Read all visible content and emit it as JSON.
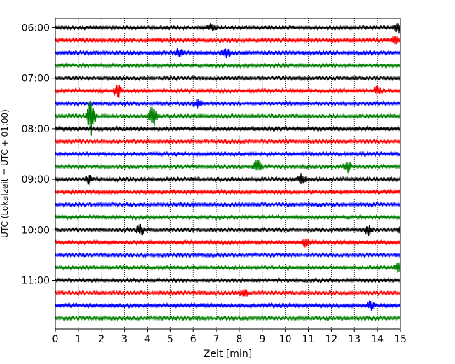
{
  "chart_data": {
    "type": "line",
    "title": "",
    "xlabel": "Zeit  [min]",
    "ylabel": "UTC (Lokalzeit = UTC + 01:00)",
    "xlim": [
      0,
      15
    ],
    "x_ticks": [
      0,
      1,
      2,
      3,
      4,
      5,
      6,
      7,
      8,
      9,
      10,
      11,
      12,
      13,
      14,
      15
    ],
    "y_tick_labels": [
      "06:00",
      "07:00",
      "08:00",
      "09:00",
      "10:00",
      "11:00"
    ],
    "y_tick_rows": [
      0,
      4,
      8,
      12,
      16,
      20
    ],
    "grid": "vertical dotted",
    "trace_colors": [
      "#000000",
      "#ff0000",
      "#0000ff",
      "#008000"
    ],
    "rows": [
      {
        "start": "06:00",
        "color": "#000000"
      },
      {
        "start": "06:15",
        "color": "#ff0000"
      },
      {
        "start": "06:30",
        "color": "#0000ff"
      },
      {
        "start": "06:45",
        "color": "#008000"
      },
      {
        "start": "07:00",
        "color": "#000000"
      },
      {
        "start": "07:15",
        "color": "#ff0000"
      },
      {
        "start": "07:30",
        "color": "#0000ff"
      },
      {
        "start": "07:45",
        "color": "#008000"
      },
      {
        "start": "08:00",
        "color": "#000000"
      },
      {
        "start": "08:15",
        "color": "#ff0000"
      },
      {
        "start": "08:30",
        "color": "#0000ff"
      },
      {
        "start": "08:45",
        "color": "#008000"
      },
      {
        "start": "09:00",
        "color": "#000000"
      },
      {
        "start": "09:15",
        "color": "#ff0000"
      },
      {
        "start": "09:30",
        "color": "#0000ff"
      },
      {
        "start": "09:45",
        "color": "#008000"
      },
      {
        "start": "10:00",
        "color": "#000000"
      },
      {
        "start": "10:15",
        "color": "#ff0000"
      },
      {
        "start": "10:30",
        "color": "#0000ff"
      },
      {
        "start": "10:45",
        "color": "#008000"
      },
      {
        "start": "11:00",
        "color": "#000000"
      },
      {
        "start": "11:15",
        "color": "#ff0000"
      },
      {
        "start": "11:30",
        "color": "#0000ff"
      },
      {
        "start": "11:45",
        "color": "#008000"
      }
    ],
    "events": [
      {
        "row": 0,
        "min": 6.8,
        "amp": 0.35
      },
      {
        "row": 0,
        "min": 14.9,
        "amp": 0.4
      },
      {
        "row": 1,
        "min": 14.8,
        "amp": 0.35
      },
      {
        "row": 2,
        "min": 7.4,
        "amp": 0.5
      },
      {
        "row": 2,
        "min": 5.4,
        "amp": 0.3
      },
      {
        "row": 5,
        "min": 2.7,
        "amp": 0.55
      },
      {
        "row": 5,
        "min": 14.0,
        "amp": 0.35
      },
      {
        "row": 6,
        "min": 6.2,
        "amp": 0.3
      },
      {
        "row": 7,
        "min": 1.55,
        "amp": 1.6
      },
      {
        "row": 7,
        "min": 4.25,
        "amp": 1.0
      },
      {
        "row": 11,
        "min": 8.8,
        "amp": 0.55
      },
      {
        "row": 11,
        "min": 12.7,
        "amp": 0.45
      },
      {
        "row": 12,
        "min": 1.5,
        "amp": 0.35
      },
      {
        "row": 12,
        "min": 10.7,
        "amp": 0.45
      },
      {
        "row": 16,
        "min": 3.7,
        "amp": 0.45
      },
      {
        "row": 16,
        "min": 13.6,
        "amp": 0.4
      },
      {
        "row": 16,
        "min": 15.0,
        "amp": 0.45
      },
      {
        "row": 17,
        "min": 10.9,
        "amp": 0.4
      },
      {
        "row": 19,
        "min": 14.9,
        "amp": 0.4
      },
      {
        "row": 21,
        "min": 8.2,
        "amp": 0.35
      },
      {
        "row": 22,
        "min": 13.7,
        "amp": 0.35
      }
    ]
  }
}
